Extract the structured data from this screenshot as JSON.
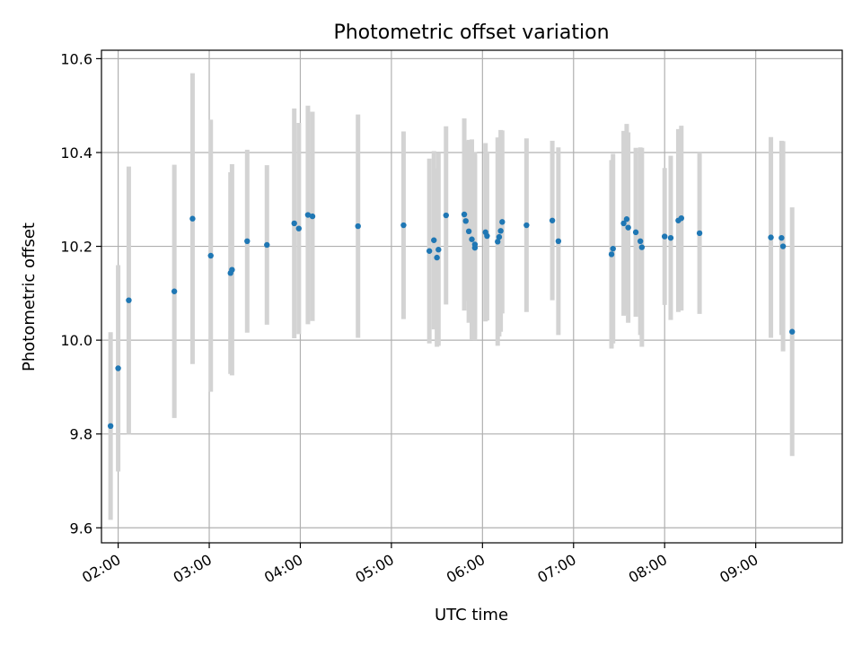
{
  "chart_data": {
    "type": "scatter",
    "title": "Photometric offset variation",
    "xlabel": "UTC time",
    "ylabel": "Photometric offset",
    "x_unit": "UTC time of day (HH:MM)",
    "xlim": [
      "01:49",
      "09:57"
    ],
    "ylim": [
      9.568,
      10.618
    ],
    "xticks": [
      "02:00",
      "03:00",
      "04:00",
      "05:00",
      "06:00",
      "07:00",
      "08:00",
      "09:00"
    ],
    "yticks": [
      "9.6",
      "9.8",
      "10.0",
      "10.2",
      "10.4",
      "10.6"
    ],
    "grid": true,
    "legend": "none",
    "colors": {
      "points": "#1f77b4",
      "error_bars": "#d3d3d3",
      "grid": "#b0b0b0",
      "axes": "#000000"
    },
    "series": [
      {
        "x": [
          "01:55",
          "02:00",
          "02:07",
          "02:37",
          "02:49",
          "03:01",
          "03:14",
          "03:15",
          "03:25",
          "03:38",
          "03:56",
          "03:59",
          "04:05",
          "04:08",
          "04:38",
          "05:08",
          "05:25",
          "05:28",
          "05:30",
          "05:31",
          "05:36",
          "05:48",
          "05:49",
          "05:51",
          "05:53",
          "05:55",
          "05:55",
          "06:02",
          "06:03",
          "06:10",
          "06:11",
          "06:12",
          "06:13",
          "06:29",
          "06:46",
          "06:50",
          "07:25",
          "07:26",
          "07:33",
          "07:35",
          "07:36",
          "07:41",
          "07:44",
          "07:45",
          "08:00",
          "08:04",
          "08:09",
          "08:11",
          "08:23",
          "09:10",
          "09:17",
          "09:18",
          "09:24"
        ],
        "y": [
          9.817,
          9.94,
          10.085,
          10.104,
          10.259,
          10.18,
          10.143,
          10.15,
          10.211,
          10.203,
          10.249,
          10.238,
          10.267,
          10.264,
          10.243,
          10.245,
          10.19,
          10.213,
          10.176,
          10.193,
          10.266,
          10.268,
          10.254,
          10.232,
          10.215,
          10.197,
          10.204,
          10.23,
          10.222,
          10.21,
          10.22,
          10.233,
          10.252,
          10.245,
          10.255,
          10.211,
          10.183,
          10.195,
          10.249,
          10.258,
          10.24,
          10.23,
          10.211,
          10.198,
          10.221,
          10.218,
          10.255,
          10.26,
          10.228,
          10.219,
          10.218,
          10.2,
          10.018
        ],
        "err": [
          0.2,
          0.22,
          0.285,
          0.27,
          0.31,
          0.29,
          0.215,
          0.225,
          0.195,
          0.17,
          0.245,
          0.225,
          0.233,
          0.223,
          0.238,
          0.2,
          0.197,
          0.19,
          0.19,
          0.205,
          0.19,
          0.205,
          0.17,
          0.195,
          0.213,
          0.197,
          0.197,
          0.19,
          0.18,
          0.222,
          0.212,
          0.215,
          0.195,
          0.185,
          0.17,
          0.2,
          0.201,
          0.202,
          0.197,
          0.203,
          0.203,
          0.18,
          0.2,
          0.212,
          0.146,
          0.175,
          0.195,
          0.197,
          0.172,
          0.214,
          0.207,
          0.224,
          0.265
        ]
      }
    ]
  }
}
